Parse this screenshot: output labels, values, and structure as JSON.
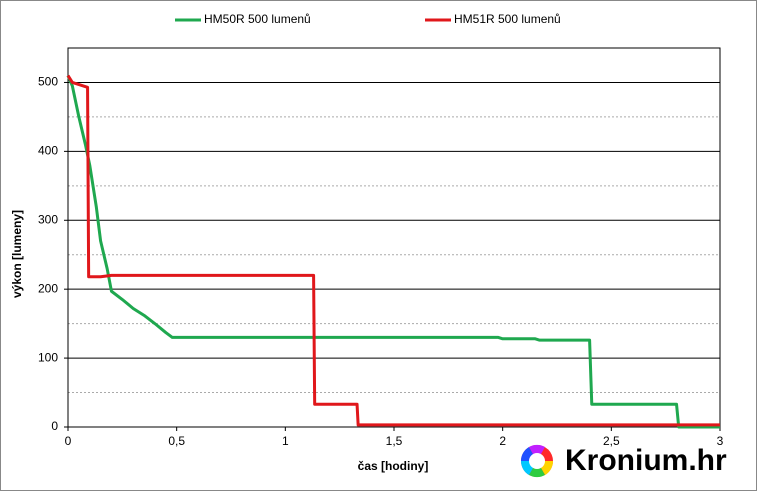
{
  "chart_data": {
    "type": "line",
    "xlabel": "čas [hodiny]",
    "ylabel": "výkon [lumeny]",
    "xlim": [
      0,
      3
    ],
    "ylim": [
      0,
      550
    ],
    "xticks": [
      0,
      {
        "value": 0.5,
        "label": "0,5"
      },
      1,
      {
        "value": 1.5,
        "label": "1,5"
      },
      2,
      {
        "value": 2.5,
        "label": "2,5"
      },
      3
    ],
    "yticks": [
      0,
      100,
      200,
      300,
      400,
      500
    ],
    "minor_yticks": [
      50,
      150,
      250,
      350,
      450
    ],
    "grid": true,
    "legend": "top",
    "watermark": "Kronium.hr",
    "series": [
      {
        "name": "HM50R 500 lumenů",
        "color": "#1fa84f",
        "x": [
          0,
          0.02,
          0.05,
          0.08,
          0.1,
          0.13,
          0.15,
          0.18,
          0.2,
          0.25,
          0.3,
          0.35,
          0.4,
          0.45,
          0.48,
          1,
          1.5,
          1.98,
          2,
          2.15,
          2.17,
          2.4,
          2.41,
          2.8,
          2.81,
          3
        ],
        "values": [
          510,
          495,
          450,
          410,
          380,
          320,
          270,
          230,
          197,
          185,
          172,
          162,
          150,
          137,
          130,
          130,
          130,
          130,
          128,
          128,
          126,
          126,
          33,
          33,
          0,
          0
        ]
      },
      {
        "name": "HM51R 500 lumenů",
        "color": "#e0171b",
        "x": [
          0,
          0.02,
          0.09,
          0.095,
          0.15,
          0.2,
          0.25,
          1.13,
          1.135,
          1.33,
          1.335,
          3
        ],
        "values": [
          510,
          500,
          493,
          218,
          218,
          220,
          220,
          220,
          33,
          33,
          3,
          3
        ]
      }
    ]
  }
}
